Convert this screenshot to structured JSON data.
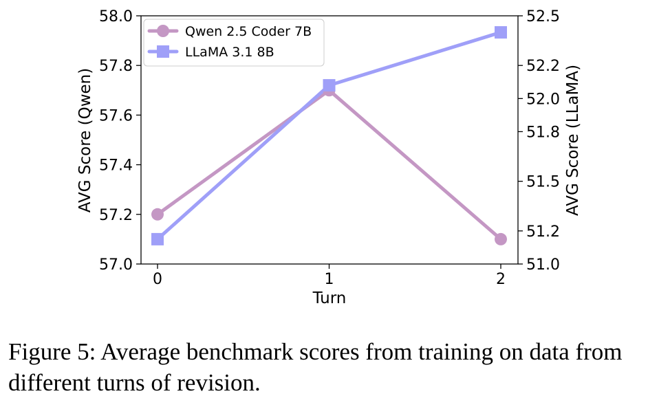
{
  "chart_data": {
    "type": "line",
    "x": [
      0,
      1,
      2
    ],
    "xticks": [
      "0",
      "1",
      "2"
    ],
    "xlabel": "Turn",
    "ylabel_left": "AVG Score (Qwen)",
    "ylabel_right": "AVG Score (LLaMA)",
    "ylim_left": [
      57.0,
      58.0
    ],
    "ylim_right": [
      51.0,
      52.5
    ],
    "yticks_left": [
      "57.0",
      "57.2",
      "57.4",
      "57.6",
      "57.8",
      "58.0"
    ],
    "yticks_right": [
      "51.0",
      "51.2",
      "51.5",
      "51.8",
      "52.0",
      "52.2",
      "52.5"
    ],
    "grid": false,
    "legend_position": "top-left",
    "series": [
      {
        "name": "Qwen 2.5 Coder 7B",
        "axis": "left",
        "values": [
          57.2,
          57.7,
          57.1
        ],
        "color": "#c497c4",
        "marker": "circle"
      },
      {
        "name": "LLaMA 3.1 8B",
        "axis": "right",
        "values": [
          51.15,
          52.08,
          52.4
        ],
        "color": "#9f9ff8",
        "marker": "square"
      }
    ]
  },
  "caption": "Figure 5: Average benchmark scores from training on data from different turns of revision."
}
